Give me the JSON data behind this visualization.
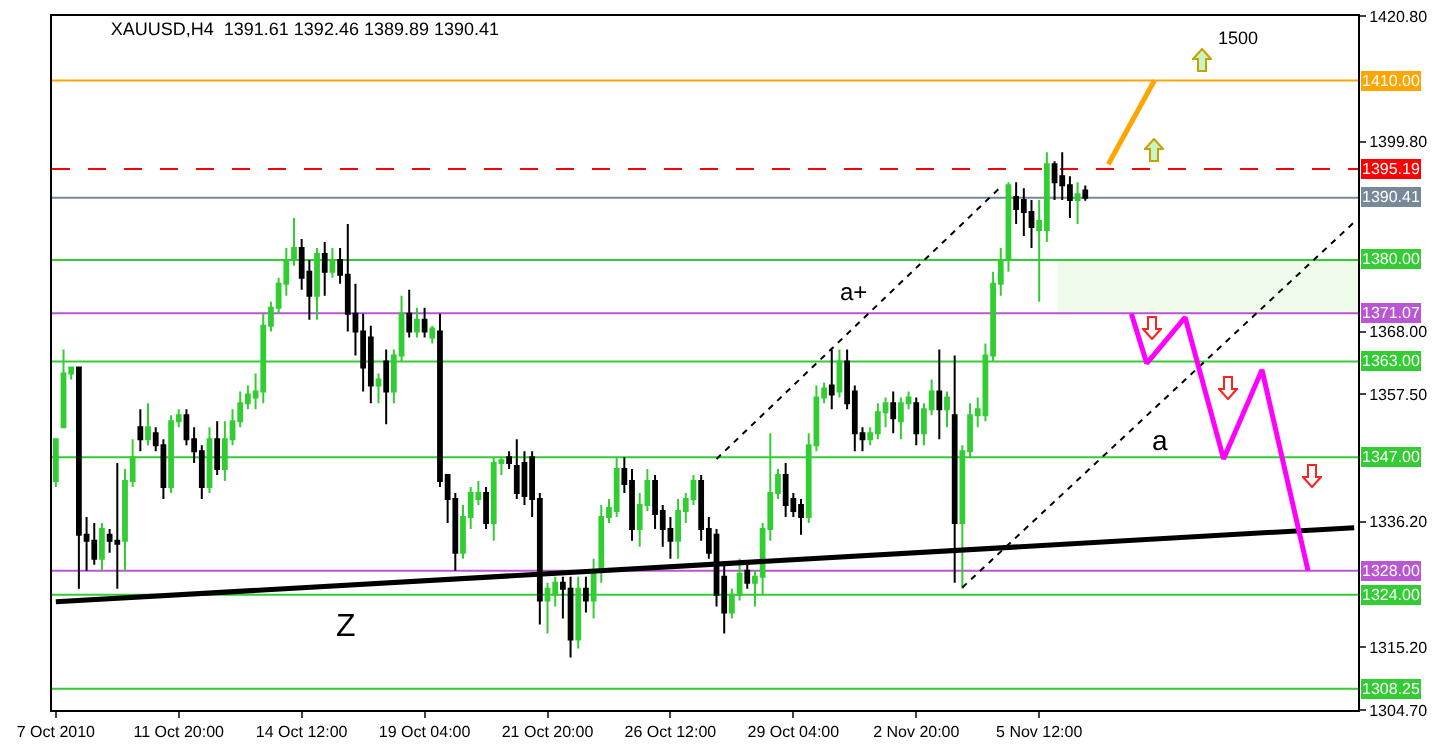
{
  "chart_data": {
    "type": "candlestick",
    "title": "XAUUSD,H4  1391.61 1392.46 1389.89 1390.41",
    "categories": [
      "7 Oct 2010",
      null,
      null,
      null,
      null,
      null,
      null,
      null,
      null,
      null,
      null,
      null,
      null,
      null,
      null,
      null,
      "11 Oct 20:00",
      null,
      null,
      null,
      null,
      null,
      null,
      null,
      null,
      null,
      null,
      null,
      null,
      null,
      null,
      null,
      "14 Oct 12:00",
      null,
      null,
      null,
      null,
      null,
      null,
      null,
      null,
      null,
      null,
      null,
      null,
      null,
      null,
      null,
      "19 Oct 04:00",
      null,
      null,
      null,
      null,
      null,
      null,
      null,
      null,
      null,
      null,
      null,
      null,
      null,
      null,
      null,
      "21 Oct 20:00",
      null,
      null,
      null,
      null,
      null,
      null,
      null,
      null,
      null,
      null,
      null,
      null,
      null,
      null,
      null,
      "26 Oct 12:00",
      null,
      null,
      null,
      null,
      null,
      null,
      null,
      null,
      null,
      null,
      null,
      null,
      null,
      null,
      null,
      "29 Oct 04:00",
      null,
      null,
      null,
      null,
      null,
      null,
      null,
      null,
      null,
      null,
      null,
      null,
      null,
      null,
      null,
      "2 Nov 20:00",
      null,
      null,
      null,
      null,
      null,
      null,
      null,
      null,
      null,
      null,
      null,
      null,
      null,
      null,
      null,
      "5 Nov 12:00",
      null,
      null,
      null,
      null,
      null,
      null,
      null,
      null,
      null,
      null,
      null,
      null,
      null,
      null,
      null,
      null,
      null,
      null,
      null,
      null,
      null,
      null,
      null,
      null,
      null,
      null,
      null,
      null,
      null,
      null,
      null,
      null,
      null,
      null,
      null,
      null,
      null,
      null,
      null,
      null,
      null
    ],
    "ohlc": [
      [
        1343,
        1350,
        1342,
        1350
      ],
      [
        1352,
        1365,
        1352,
        1361
      ],
      [
        1361,
        1362,
        1360,
        1362
      ],
      [
        1362,
        1362,
        1325,
        1334
      ],
      [
        1334,
        1337,
        1328,
        1333
      ],
      [
        1333,
        1336,
        1329,
        1330
      ],
      [
        1330,
        1336,
        1328,
        1335
      ],
      [
        1334,
        1335,
        1331,
        1333
      ],
      [
        1333,
        1346,
        1325,
        1332.5
      ],
      [
        1333,
        1345,
        1328,
        1343
      ],
      [
        1343,
        1350,
        1342,
        1347
      ],
      [
        1352,
        1355,
        1348,
        1350
      ],
      [
        1350,
        1356,
        1349,
        1352
      ],
      [
        1351,
        1352,
        1348,
        1349
      ],
      [
        1349,
        1350,
        1340,
        1342
      ],
      [
        1342,
        1354,
        1341,
        1353
      ],
      [
        1353,
        1355,
        1352,
        1354
      ],
      [
        1354,
        1355,
        1349,
        1350
      ],
      [
        1350,
        1352,
        1346,
        1348
      ],
      [
        1348,
        1349,
        1340,
        1342
      ],
      [
        1342,
        1352,
        1341,
        1350
      ],
      [
        1350,
        1353,
        1344,
        1345
      ],
      [
        1345,
        1353,
        1343,
        1350
      ],
      [
        1350,
        1355,
        1349,
        1353
      ],
      [
        1353,
        1358,
        1352,
        1356
      ],
      [
        1356,
        1359,
        1355,
        1357.5
      ],
      [
        1357,
        1361,
        1355,
        1358
      ],
      [
        1358,
        1371,
        1356,
        1369
      ],
      [
        1369,
        1373,
        1368,
        1372
      ],
      [
        1372,
        1377,
        1371,
        1376
      ],
      [
        1376,
        1382,
        1374,
        1380
      ],
      [
        1380,
        1387,
        1379,
        1382
      ],
      [
        1382,
        1383.5,
        1375,
        1377
      ],
      [
        1378,
        1380,
        1370,
        1374
      ],
      [
        1374,
        1382,
        1370,
        1381
      ],
      [
        1381,
        1383,
        1374,
        1378
      ],
      [
        1378,
        1382,
        1377,
        1380
      ],
      [
        1380,
        1382,
        1376,
        1377.5
      ],
      [
        1377.5,
        1386,
        1368,
        1371
      ],
      [
        1371,
        1376,
        1364,
        1368
      ],
      [
        1368,
        1371,
        1358,
        1362
      ],
      [
        1367,
        1369,
        1356,
        1359
      ],
      [
        1359,
        1361,
        1356,
        1360
      ],
      [
        1363,
        1365,
        1352.5,
        1358
      ],
      [
        1358,
        1365,
        1356,
        1364
      ],
      [
        1364,
        1374,
        1363,
        1371
      ],
      [
        1371,
        1375,
        1367,
        1368
      ],
      [
        1368,
        1372,
        1367,
        1370
      ],
      [
        1370,
        1372,
        1367,
        1368
      ],
      [
        1367,
        1369,
        1366,
        1368.5
      ],
      [
        1368,
        1371,
        1342,
        1343
      ],
      [
        1344,
        1344,
        1336,
        1340
      ],
      [
        1340,
        1341,
        1328,
        1331
      ],
      [
        1331,
        1339,
        1330,
        1337
      ],
      [
        1337,
        1342,
        1335,
        1341
      ],
      [
        1340,
        1343,
        1339,
        1341
      ],
      [
        1341,
        1342,
        1335,
        1336
      ],
      [
        1336,
        1347,
        1333,
        1346
      ],
      [
        1346,
        1347,
        1344,
        1346.5
      ],
      [
        1347,
        1348,
        1345,
        1346
      ],
      [
        1345.5,
        1350,
        1340,
        1341
      ],
      [
        1346,
        1348,
        1339,
        1340.5
      ],
      [
        1347,
        1348,
        1337,
        1340
      ],
      [
        1340,
        1341,
        1319,
        1323
      ],
      [
        1323,
        1326,
        1317.5,
        1325
      ],
      [
        1324,
        1327,
        1322,
        1326
      ],
      [
        1326,
        1327,
        1320,
        1325
      ],
      [
        1325,
        1327,
        1313.5,
        1316.5
      ],
      [
        1316.5,
        1327,
        1315,
        1325
      ],
      [
        1325,
        1327,
        1321,
        1323
      ],
      [
        1323,
        1330,
        1320,
        1328
      ],
      [
        1328,
        1339,
        1326,
        1337
      ],
      [
        1337,
        1340,
        1336,
        1338.5
      ],
      [
        1338,
        1347,
        1337,
        1345
      ],
      [
        1345,
        1347,
        1341,
        1342.5
      ],
      [
        1343,
        1345,
        1333,
        1335
      ],
      [
        1335,
        1341,
        1332,
        1339
      ],
      [
        1339,
        1345,
        1338,
        1343
      ],
      [
        1343,
        1344,
        1335,
        1337.5
      ],
      [
        1338,
        1339,
        1332,
        1335
      ],
      [
        1335,
        1337,
        1330,
        1333
      ],
      [
        1333,
        1340,
        1330,
        1338
      ],
      [
        1338,
        1341,
        1336,
        1340
      ],
      [
        1340,
        1344,
        1339,
        1343
      ],
      [
        1343,
        1344,
        1333,
        1335
      ],
      [
        1335,
        1337,
        1330,
        1331
      ],
      [
        1334,
        1335,
        1322,
        1324
      ],
      [
        1327,
        1329,
        1317.5,
        1321
      ],
      [
        1321,
        1325,
        1320,
        1324
      ],
      [
        1324,
        1330,
        1323,
        1327.5
      ],
      [
        1328,
        1329,
        1325,
        1326
      ],
      [
        1326,
        1328,
        1322,
        1327
      ],
      [
        1327,
        1336,
        1324,
        1335
      ],
      [
        1335,
        1351,
        1333,
        1341
      ],
      [
        1341,
        1345,
        1340,
        1344
      ],
      [
        1344,
        1346,
        1337,
        1339
      ],
      [
        1340,
        1341,
        1337,
        1338
      ],
      [
        1339,
        1340,
        1334,
        1337
      ],
      [
        1337,
        1351,
        1336,
        1349
      ],
      [
        1349,
        1359,
        1348,
        1357
      ],
      [
        1357,
        1359.5,
        1356,
        1358.5
      ],
      [
        1359,
        1365,
        1355,
        1357.5
      ],
      [
        1358,
        1365,
        1357,
        1363
      ],
      [
        1363,
        1365,
        1355,
        1356
      ],
      [
        1358,
        1359,
        1348,
        1351
      ],
      [
        1351,
        1352,
        1348,
        1350
      ],
      [
        1350,
        1352,
        1349,
        1351
      ],
      [
        1351,
        1356,
        1350,
        1354.5
      ],
      [
        1354.5,
        1357,
        1352,
        1356
      ],
      [
        1356,
        1358,
        1351,
        1353.5
      ],
      [
        1353,
        1357,
        1350,
        1356
      ],
      [
        1356,
        1358,
        1355,
        1357
      ],
      [
        1356,
        1357,
        1349,
        1351
      ],
      [
        1351,
        1356,
        1349,
        1355
      ],
      [
        1355,
        1360,
        1354,
        1358
      ],
      [
        1358,
        1365,
        1350,
        1355
      ],
      [
        1355,
        1358,
        1352,
        1357
      ],
      [
        1354,
        1364,
        1326,
        1336
      ],
      [
        1336,
        1349,
        1325,
        1348
      ],
      [
        1348,
        1356,
        1347,
        1354
      ],
      [
        1354,
        1357,
        1352,
        1355
      ],
      [
        1354,
        1366,
        1353,
        1364
      ],
      [
        1364,
        1378,
        1363,
        1376
      ],
      [
        1376,
        1382,
        1374,
        1380
      ],
      [
        1380,
        1393,
        1378,
        1392.5
      ],
      [
        1390.5,
        1393,
        1386,
        1388.5
      ],
      [
        1390,
        1392,
        1384,
        1388
      ],
      [
        1388,
        1390,
        1382,
        1385.5
      ],
      [
        1385,
        1390,
        1373,
        1386.5
      ],
      [
        1385,
        1398,
        1383,
        1396
      ],
      [
        1396,
        1396.5,
        1390,
        1393
      ],
      [
        1394,
        1398,
        1390,
        1392.5
      ],
      [
        1392.5,
        1394,
        1387,
        1390
      ],
      [
        1390,
        1393,
        1386,
        1391
      ],
      [
        1391.61,
        1392.46,
        1389.89,
        1390.41
      ],
      null,
      null,
      null,
      null,
      null,
      null,
      null,
      null,
      null,
      null,
      null,
      null,
      null,
      null,
      null,
      null,
      null,
      null,
      null,
      null,
      null,
      null,
      null,
      null,
      null,
      null,
      null,
      null,
      null,
      null,
      null,
      null,
      null,
      null,
      null
    ],
    "series": [
      {
        "type": "line",
        "color": "#000000",
        "line_style": "solid",
        "values": [
          1322.8,
          null,
          null,
          null,
          null,
          null,
          null,
          null,
          null,
          null,
          null,
          null,
          null,
          null,
          null,
          null,
          null,
          null,
          null,
          null,
          null,
          null,
          null,
          null,
          null,
          null,
          null,
          null,
          null,
          null,
          null,
          null,
          null,
          null,
          null,
          null,
          null,
          null,
          null,
          null,
          null,
          null,
          null,
          null,
          null,
          null,
          null,
          null,
          null,
          null,
          null,
          null,
          null,
          null,
          null,
          null,
          null,
          null,
          null,
          null,
          null,
          null,
          null,
          null,
          null,
          null,
          null,
          null,
          null,
          null,
          null,
          null,
          null,
          null,
          null,
          null,
          null,
          null,
          null,
          null,
          null,
          null,
          null,
          null,
          null,
          null,
          null,
          null,
          null,
          null,
          null,
          null,
          null,
          null,
          null,
          null,
          null,
          null,
          null,
          null,
          null,
          null,
          null,
          null,
          null,
          null,
          null,
          null,
          null,
          null,
          null,
          null,
          null,
          null,
          null,
          null,
          null,
          null,
          null,
          null,
          null,
          null,
          null,
          null,
          null,
          null,
          null,
          null,
          null,
          null,
          null,
          null,
          null,
          null,
          null,
          null,
          null,
          null,
          null,
          null,
          null,
          null,
          null,
          null,
          null,
          null,
          null,
          null,
          null,
          null,
          null,
          null,
          null,
          null,
          null,
          null,
          null,
          null,
          null,
          null,
          null,
          null,
          null,
          null,
          null,
          null,
          null,
          null,
          null,
          1335.2
        ]
      },
      {
        "type": "line",
        "color": "#000000",
        "line_style": "dotted",
        "values": [
          null,
          null,
          null,
          null,
          null,
          null,
          null,
          null,
          null,
          null,
          null,
          null,
          null,
          null,
          null,
          null,
          null,
          null,
          null,
          null,
          null,
          null,
          null,
          null,
          null,
          null,
          null,
          null,
          null,
          null,
          null,
          null,
          null,
          null,
          null,
          null,
          null,
          null,
          null,
          null,
          null,
          null,
          null,
          null,
          null,
          null,
          null,
          null,
          null,
          null,
          null,
          null,
          null,
          null,
          null,
          null,
          null,
          null,
          null,
          null,
          null,
          null,
          null,
          null,
          null,
          null,
          null,
          null,
          null,
          null,
          null,
          null,
          null,
          null,
          null,
          null,
          null,
          null,
          null,
          null,
          null,
          null,
          null,
          null,
          null,
          null,
          1346.7,
          null,
          null,
          null,
          null,
          null,
          null,
          null,
          null,
          null,
          null,
          null,
          null,
          null,
          null,
          null,
          null,
          null,
          null,
          null,
          null,
          null,
          null,
          null,
          null,
          null,
          null,
          null,
          null,
          null,
          null,
          null,
          null,
          null,
          null,
          null,
          null,
          1392.2,
          null,
          null,
          null,
          null,
          null,
          null,
          null,
          null,
          null,
          null,
          null,
          null,
          null,
          null,
          null,
          null,
          null,
          null,
          null,
          null,
          null,
          null,
          null,
          null,
          null,
          null,
          null,
          null,
          null,
          null,
          null,
          null,
          null,
          null,
          null,
          null,
          null,
          null,
          null,
          null,
          null,
          null,
          null,
          null,
          null,
          null
        ]
      },
      {
        "type": "line",
        "color": "#000000",
        "line_style": "dotted",
        "values": [
          null,
          null,
          null,
          null,
          null,
          null,
          null,
          null,
          null,
          null,
          null,
          null,
          null,
          null,
          null,
          null,
          null,
          null,
          null,
          null,
          null,
          null,
          null,
          null,
          null,
          null,
          null,
          null,
          null,
          null,
          null,
          null,
          null,
          null,
          null,
          null,
          null,
          null,
          null,
          null,
          null,
          null,
          null,
          null,
          null,
          null,
          null,
          null,
          null,
          null,
          null,
          null,
          null,
          null,
          null,
          null,
          null,
          null,
          null,
          null,
          null,
          null,
          null,
          null,
          null,
          null,
          null,
          null,
          null,
          null,
          null,
          null,
          null,
          null,
          null,
          null,
          null,
          null,
          null,
          null,
          null,
          null,
          null,
          null,
          null,
          null,
          null,
          null,
          null,
          null,
          null,
          null,
          null,
          null,
          null,
          null,
          null,
          null,
          null,
          null,
          null,
          null,
          null,
          null,
          null,
          null,
          null,
          null,
          null,
          null,
          null,
          null,
          null,
          null,
          null,
          null,
          null,
          null,
          1325.2,
          null,
          null,
          null,
          null,
          null,
          null,
          null,
          null,
          null,
          null,
          null,
          null,
          null,
          null,
          null,
          null,
          null,
          null,
          null,
          null,
          null,
          null,
          null,
          null,
          null,
          null,
          null,
          null,
          null,
          null,
          null,
          null,
          null,
          null,
          null,
          null,
          null,
          null,
          null,
          null,
          null,
          null,
          null,
          null,
          null,
          null,
          null,
          null,
          null,
          null,
          1386.3
        ]
      },
      {
        "type": "line",
        "color": "#ffa500",
        "line_style": "solid",
        "values": [
          null,
          null,
          null,
          null,
          null,
          null,
          null,
          null,
          null,
          null,
          null,
          null,
          null,
          null,
          null,
          null,
          null,
          null,
          null,
          null,
          null,
          null,
          null,
          null,
          null,
          null,
          null,
          null,
          null,
          null,
          null,
          null,
          null,
          null,
          null,
          null,
          null,
          null,
          null,
          null,
          null,
          null,
          null,
          null,
          null,
          null,
          null,
          null,
          null,
          null,
          null,
          null,
          null,
          null,
          null,
          null,
          null,
          null,
          null,
          null,
          null,
          null,
          null,
          null,
          null,
          null,
          null,
          null,
          null,
          null,
          null,
          null,
          null,
          null,
          null,
          null,
          null,
          null,
          null,
          null,
          null,
          null,
          null,
          null,
          null,
          null,
          null,
          null,
          null,
          null,
          null,
          null,
          null,
          null,
          null,
          null,
          null,
          null,
          null,
          null,
          null,
          null,
          null,
          null,
          null,
          null,
          null,
          null,
          null,
          null,
          null,
          null,
          null,
          null,
          null,
          null,
          null,
          null,
          null,
          null,
          null,
          null,
          null,
          null,
          null,
          null,
          null,
          null,
          null,
          null,
          null,
          null,
          null,
          null,
          null,
          null,
          null,
          1396,
          null,
          null,
          null,
          null,
          null,
          1410,
          null,
          null,
          null,
          null,
          null,
          null,
          null,
          null,
          null,
          null,
          null,
          null,
          null,
          null,
          null,
          null,
          null,
          null,
          null,
          null,
          null,
          null,
          null,
          null,
          null,
          null
        ]
      },
      {
        "type": "line",
        "color": "#ff00ff",
        "line_style": "solid",
        "values": [
          null,
          null,
          null,
          null,
          null,
          null,
          null,
          null,
          null,
          null,
          null,
          null,
          null,
          null,
          null,
          null,
          null,
          null,
          null,
          null,
          null,
          null,
          null,
          null,
          null,
          null,
          null,
          null,
          null,
          null,
          null,
          null,
          null,
          null,
          null,
          null,
          null,
          null,
          null,
          null,
          null,
          null,
          null,
          null,
          null,
          null,
          null,
          null,
          null,
          null,
          null,
          null,
          null,
          null,
          null,
          null,
          null,
          null,
          null,
          null,
          null,
          null,
          null,
          null,
          null,
          null,
          null,
          null,
          null,
          null,
          null,
          null,
          null,
          null,
          null,
          null,
          null,
          null,
          null,
          null,
          null,
          null,
          null,
          null,
          null,
          null,
          null,
          null,
          null,
          null,
          null,
          null,
          null,
          null,
          null,
          null,
          null,
          null,
          null,
          null,
          null,
          null,
          null,
          null,
          null,
          null,
          null,
          null,
          null,
          null,
          null,
          null,
          null,
          null,
          null,
          null,
          null,
          null,
          null,
          null,
          null,
          null,
          null,
          null,
          null,
          null,
          null,
          null,
          null,
          null,
          null,
          null,
          null,
          null,
          null,
          null,
          null,
          null,
          null,
          null,
          1371,
          null,
          1362.7,
          null,
          null,
          null,
          null,
          1370.4,
          null,
          null,
          null,
          null,
          1346.7,
          null,
          null,
          null,
          null,
          1361.6,
          null,
          null,
          null,
          null,
          null,
          1328,
          null,
          null,
          null,
          null,
          null,
          null
        ]
      }
    ],
    "ylim": [
      1304.7,
      1420.8
    ],
    "yticks": [
      {
        "value": 1420.8,
        "label": "1420.80"
      },
      {
        "value": 1399.8,
        "label": "1399.80"
      },
      {
        "value": 1368,
        "label": "1368.00"
      },
      {
        "value": 1357.5,
        "label": "1357.50"
      },
      {
        "value": 1336.2,
        "label": "1336.20"
      },
      {
        "value": 1315.2,
        "label": "1315.20"
      },
      {
        "value": 1304.7,
        "label": "1304.70"
      }
    ],
    "ref_lines": [
      {
        "axis": "y",
        "value": 1410,
        "label": "1410.00",
        "color": "#ffa500",
        "line_style": "solid"
      },
      {
        "axis": "y",
        "value": 1395.19,
        "label": "1395.19",
        "color": "#ff0000",
        "line_style": "dashed"
      },
      {
        "axis": "y",
        "value": 1390.41,
        "label": "1390.41",
        "color": "#778899",
        "line_style": "solid"
      },
      {
        "axis": "y",
        "value": 1380,
        "label": "1380.00",
        "color": "#32cd32",
        "line_style": "solid"
      },
      {
        "axis": "y",
        "value": 1371.07,
        "label": "1371.07",
        "color": "#ba55d3",
        "line_style": "solid"
      },
      {
        "axis": "y",
        "value": 1363,
        "label": "1363.00",
        "color": "#32cd32",
        "line_style": "solid"
      },
      {
        "axis": "y",
        "value": 1347,
        "label": "1347.00",
        "color": "#32cd32",
        "line_style": "solid"
      },
      {
        "axis": "y",
        "value": 1328,
        "label": "1328.00",
        "color": "#ba55d3",
        "line_style": "solid"
      },
      {
        "axis": "y",
        "value": 1324,
        "label": "1324.00",
        "color": "#32cd32",
        "line_style": "solid"
      },
      {
        "axis": "y",
        "value": 1308.25,
        "label": "1308.25",
        "color": "#32cd32",
        "line_style": "solid"
      }
    ],
    "bands": [
      {
        "axis": "y",
        "from": 1371.07,
        "to": 1380,
        "color": "#effbea"
      }
    ],
    "annotations": [
      "a+",
      "a",
      "Z",
      "1500"
    ],
    "grid": false
  }
}
